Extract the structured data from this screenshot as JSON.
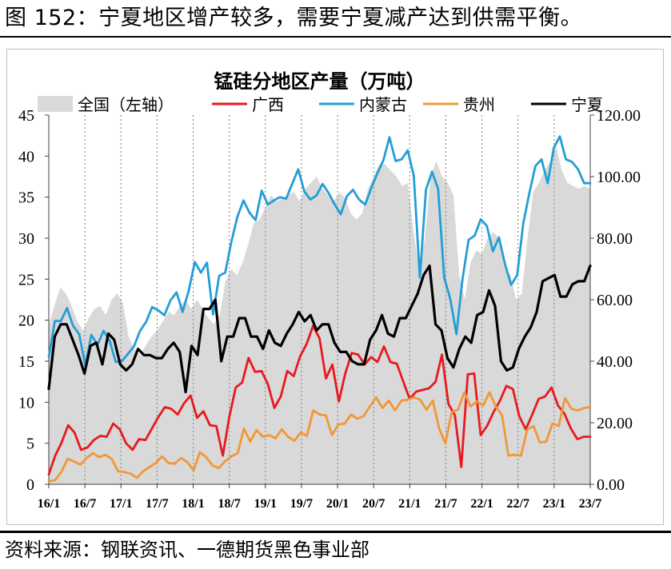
{
  "figure": {
    "title": "图 152：宁夏地区增产较多，需要宁夏减产达到供需平衡。",
    "source": "资料来源：钢联资讯、一德期货黑色事业部"
  },
  "chart_data": {
    "type": "line",
    "title": "锰硅分地区产量（万吨）",
    "x_labels": [
      "16/1",
      "16/7",
      "17/1",
      "17/7",
      "18/1",
      "18/7",
      "19/1",
      "19/7",
      "20/1",
      "20/7",
      "21/1",
      "21/7",
      "22/1",
      "22/7",
      "23/1",
      "23/7"
    ],
    "grid": "vertical dotted lines at each x label",
    "legend_position": "top",
    "y_left": {
      "min": 0,
      "max": 45,
      "ticks": [
        "0",
        "5",
        "10",
        "15",
        "20",
        "25",
        "30",
        "35",
        "40",
        "45"
      ]
    },
    "y_right": {
      "min": 0,
      "max": 120,
      "ticks": [
        "0.00",
        "20.00",
        "40.00",
        "60.00",
        "80.00",
        "100.00",
        "120.00"
      ]
    },
    "series": [
      {
        "name": "全国（左轴）",
        "kind": "area",
        "axis": "right",
        "color": "#d9d9d9",
        "values": [
          52,
          58,
          64,
          62,
          58,
          53,
          50,
          54,
          57,
          58,
          55,
          60,
          62,
          59,
          48,
          44,
          42,
          45,
          48,
          50,
          53,
          56,
          55,
          58,
          60,
          57,
          60,
          57,
          54,
          52,
          55,
          66,
          70,
          68,
          72,
          78,
          85,
          86,
          90,
          94,
          92,
          93,
          94,
          95,
          92,
          96,
          98,
          100,
          96,
          94,
          92,
          95,
          93,
          88,
          86,
          88,
          96,
          100,
          104,
          104,
          102,
          100,
          97,
          98,
          82,
          70,
          80,
          100,
          105,
          100,
          98,
          94,
          68,
          60,
          72,
          76,
          75,
          80,
          82,
          80,
          70,
          68,
          60,
          62,
          80,
          95,
          98,
          102,
          105,
          110,
          102,
          98,
          97,
          96,
          97,
          96
        ]
      },
      {
        "name": "广西",
        "kind": "line",
        "axis": "left",
        "color": "#e8191e",
        "values": [
          1.2,
          3.5,
          5.1,
          7.2,
          6.3,
          4.2,
          4.5,
          5.4,
          5.9,
          5.8,
          7.4,
          6.7,
          5.0,
          4.2,
          5.5,
          5.4,
          6.8,
          8.2,
          9.4,
          9.2,
          8.5,
          9.9,
          10.8,
          8.1,
          8.9,
          7.2,
          7.1,
          3.5,
          8.2,
          11.8,
          12.4,
          15.4,
          13.7,
          13.8,
          12.2,
          9.3,
          10.7,
          13.8,
          13.2,
          15.6,
          17.1,
          19.3,
          17.8,
          12.9,
          14.6,
          10.1,
          13.5,
          16.0,
          15.8,
          14.6,
          15.5,
          14.9,
          16.8,
          14.9,
          14.7,
          12.5,
          10.4,
          11.3,
          11.5,
          11.7,
          12.5,
          15.8,
          9.8,
          8.4,
          2.1,
          13.4,
          13.5,
          6.0,
          7.1,
          8.8,
          10.2,
          12.0,
          11.6,
          8.3,
          6.7,
          8.5,
          10.4,
          10.7,
          11.8,
          9.6,
          8.6,
          6.8,
          5.5,
          5.8,
          5.8
        ]
      },
      {
        "name": "内蒙古",
        "kind": "line",
        "axis": "left",
        "color": "#239ed6",
        "values": [
          15.5,
          19.9,
          19.9,
          21.5,
          19.3,
          18.3,
          14.5,
          18.2,
          17.0,
          18.7,
          17.5,
          14.9,
          15.0,
          15.9,
          16.8,
          18.7,
          19.8,
          21.6,
          21.2,
          20.6,
          22.4,
          23.4,
          21.0,
          23.6,
          27.1,
          25.8,
          27.0,
          20.7,
          25.4,
          25.8,
          29.5,
          32.6,
          34.6,
          33.1,
          32.2,
          35.8,
          34.1,
          34.6,
          35.0,
          34.8,
          36.6,
          38.4,
          35.7,
          34.7,
          35.2,
          36.6,
          35.5,
          34.1,
          32.9,
          35.1,
          35.9,
          34.7,
          34.1,
          36.1,
          37.9,
          39.5,
          42.3,
          39.4,
          39.6,
          40.7,
          37.6,
          25.2,
          35.9,
          38.1,
          36.0,
          25.2,
          22.6,
          18.3,
          25.0,
          29.8,
          30.3,
          32.3,
          31.5,
          28.4,
          30.1,
          26.8,
          24.3,
          25.5,
          31.8,
          35.5,
          38.8,
          39.6,
          36.7,
          41.0,
          42.4,
          39.6,
          39.3,
          38.4,
          36.7,
          36.7
        ]
      },
      {
        "name": "贵州",
        "kind": "line",
        "axis": "left",
        "color": "#f09836",
        "values": [
          0.4,
          0.5,
          1.5,
          3.1,
          2.8,
          2.4,
          3.2,
          3.8,
          3.3,
          3.6,
          3.1,
          1.6,
          1.5,
          1.3,
          0.8,
          1.6,
          2.1,
          2.6,
          3.4,
          2.6,
          2.5,
          3.2,
          2.7,
          1.7,
          3.9,
          3.3,
          2.3,
          2.0,
          2.8,
          3.4,
          3.8,
          6.8,
          5.2,
          6.6,
          5.8,
          6.0,
          5.6,
          6.7,
          5.8,
          5.3,
          6.3,
          5.9,
          9.0,
          8.5,
          8.4,
          6.0,
          7.3,
          7.4,
          8.5,
          8.0,
          8.3,
          9.5,
          10.6,
          9.3,
          10.2,
          9.0,
          10.2,
          10.3,
          10.6,
          10.3,
          9.1,
          10.2,
          6.8,
          5.0,
          8.8,
          9.1,
          11.2,
          9.5,
          10.1,
          9.6,
          11.2,
          9.5,
          8.4,
          3.5,
          3.6,
          3.5,
          6.7,
          7.1,
          5.1,
          5.2,
          7.4,
          7.1,
          10.5,
          9.2,
          9.0,
          9.3,
          9.4
        ]
      },
      {
        "name": "宁夏",
        "kind": "line",
        "axis": "right",
        "color": "#000000",
        "values": [
          31,
          48,
          52,
          52,
          47,
          42,
          36,
          45,
          46,
          39,
          49,
          47,
          39,
          37,
          39,
          44,
          42,
          42,
          41,
          41,
          44,
          46,
          43,
          30,
          45,
          42,
          57,
          57,
          60,
          40,
          48,
          48,
          54,
          54,
          48,
          48,
          44,
          50,
          46,
          45,
          49,
          52,
          56,
          53,
          55,
          50,
          52,
          52,
          46,
          43,
          43,
          40,
          39,
          39,
          47,
          50,
          55,
          49,
          48,
          54,
          54,
          58,
          62,
          68,
          71,
          52,
          50,
          41,
          38,
          44,
          48,
          46,
          55,
          56,
          63,
          58,
          40,
          37,
          38,
          44,
          48,
          51,
          56,
          66,
          67,
          68,
          61,
          61,
          65,
          66,
          66,
          71
        ]
      }
    ]
  }
}
